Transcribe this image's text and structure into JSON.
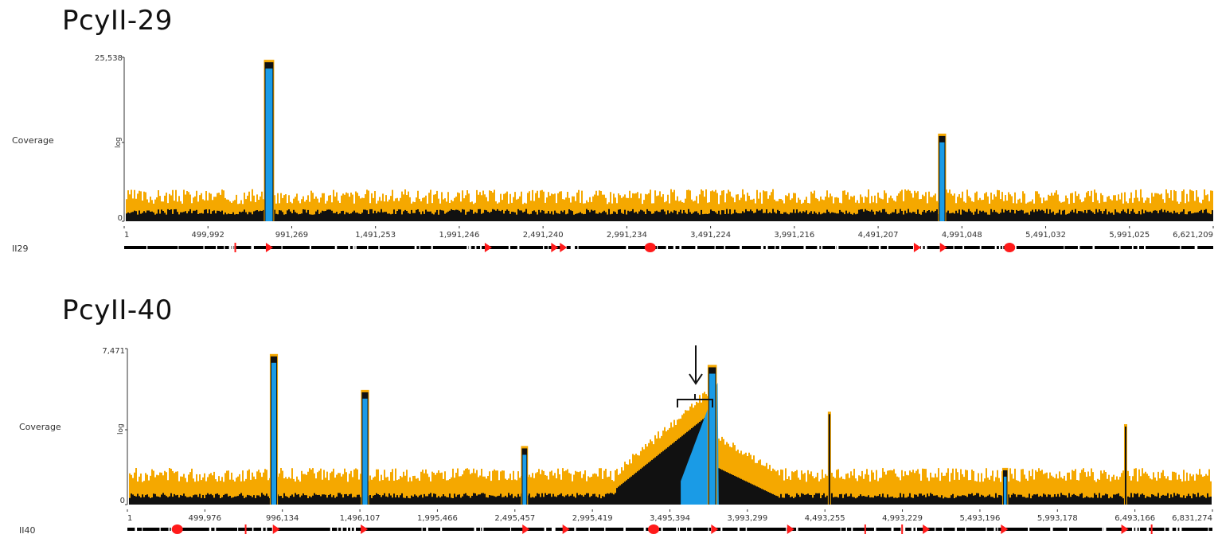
{
  "colors": {
    "orange": "#f5a800",
    "black": "#111111",
    "blue": "#1a9be6",
    "feature_red": "#ff1a1a",
    "track": "#000000"
  },
  "panels": [
    {
      "title": "PcyII-29",
      "coverage_label": "Coverage",
      "y_max_label": "25,538",
      "y_min_label": "0",
      "scale_label": "log",
      "track_label": "II29",
      "ticks": [
        "1",
        "499,992",
        "991,269",
        "1,491,253",
        "1,991,246",
        "2,491,240",
        "2,991,234",
        "3,491,224",
        "3,991,216",
        "4,491,207",
        "4,991,048",
        "5,491,032",
        "5,991,025",
        "6,621,209"
      ],
      "peaks": [
        {
          "pos": 0.133,
          "level": 0.97,
          "width": 0.008
        },
        {
          "pos": 0.751,
          "level": 0.52,
          "width": 0.006
        }
      ],
      "features": [
        {
          "pos": 0.102,
          "kind": "tick"
        },
        {
          "pos": 0.133,
          "kind": "arrow"
        },
        {
          "pos": 0.334,
          "kind": "arrow"
        },
        {
          "pos": 0.395,
          "kind": "arrow"
        },
        {
          "pos": 0.403,
          "kind": "arrow"
        },
        {
          "pos": 0.483,
          "kind": "blob"
        },
        {
          "pos": 0.728,
          "kind": "arrow"
        },
        {
          "pos": 0.752,
          "kind": "arrow"
        },
        {
          "pos": 0.813,
          "kind": "blob"
        }
      ]
    },
    {
      "title": "PcyII-40",
      "coverage_label": "Coverage",
      "y_max_label": "7,471",
      "y_min_label": "0",
      "scale_label": "log",
      "track_label": "II40",
      "ticks": [
        "1",
        "499,976",
        "996,134",
        "1,496,107",
        "1,995,466",
        "2,495,457",
        "2,995,419",
        "3,495,394",
        "3,993,299",
        "4,493,255",
        "4,993,229",
        "5,493,196",
        "5,993,178",
        "6,493,166",
        "6,831,274"
      ],
      "peaks": [
        {
          "pos": 0.135,
          "level": 0.95,
          "width": 0.006
        },
        {
          "pos": 0.219,
          "level": 0.72,
          "width": 0.006
        },
        {
          "pos": 0.366,
          "level": 0.36,
          "width": 0.005
        },
        {
          "pos": 0.539,
          "level": 0.88,
          "width": 0.007
        },
        {
          "pos": 0.647,
          "level": 0.58,
          "width": 0.0015
        },
        {
          "pos": 0.809,
          "level": 0.22,
          "width": 0.004
        },
        {
          "pos": 0.92,
          "level": 0.5,
          "width": 0.001
        }
      ],
      "features": [
        {
          "pos": 0.046,
          "kind": "blob"
        },
        {
          "pos": 0.109,
          "kind": "tick"
        },
        {
          "pos": 0.137,
          "kind": "arrow"
        },
        {
          "pos": 0.218,
          "kind": "arrow"
        },
        {
          "pos": 0.367,
          "kind": "arrow"
        },
        {
          "pos": 0.404,
          "kind": "arrow"
        },
        {
          "pos": 0.485,
          "kind": "blob"
        },
        {
          "pos": 0.541,
          "kind": "arrow"
        },
        {
          "pos": 0.611,
          "kind": "arrow"
        },
        {
          "pos": 0.68,
          "kind": "tick"
        },
        {
          "pos": 0.714,
          "kind": "tick"
        },
        {
          "pos": 0.736,
          "kind": "arrow"
        },
        {
          "pos": 0.808,
          "kind": "arrow"
        },
        {
          "pos": 0.919,
          "kind": "arrow"
        },
        {
          "pos": 0.944,
          "kind": "tick"
        }
      ]
    }
  ]
}
